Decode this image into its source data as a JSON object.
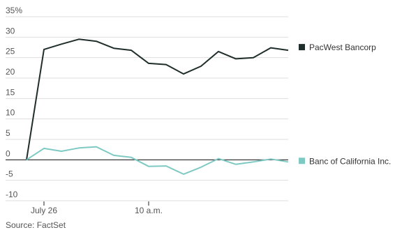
{
  "chart_data": {
    "type": "line",
    "ylabel": "",
    "xlabel": "",
    "ylim": [
      -10,
      35
    ],
    "y_ticks": [
      -10,
      -5,
      0,
      5,
      10,
      15,
      20,
      25,
      30,
      35
    ],
    "y_tick_labels": [
      "-10",
      "-5",
      "0",
      "5",
      "10",
      "15",
      "20",
      "25",
      "30",
      "35%"
    ],
    "x_tick_labels": [
      "July 26",
      "10 a.m."
    ],
    "grid": true,
    "legend_position": "right",
    "series": [
      {
        "name": "PacWest Bancorp",
        "color": "#1f2d2b",
        "values": [
          0,
          27.0,
          28.3,
          29.5,
          29.0,
          27.3,
          26.8,
          23.6,
          23.3,
          21.0,
          22.9,
          26.5,
          24.7,
          25.0,
          27.4,
          26.8
        ]
      },
      {
        "name": "Banc of California Inc.",
        "color": "#7ecac3",
        "values": [
          0,
          2.8,
          2.1,
          2.9,
          3.2,
          1.1,
          0.6,
          -1.6,
          -1.5,
          -3.5,
          -1.8,
          0.3,
          -1.1,
          -0.5,
          0.2,
          -0.5
        ]
      }
    ],
    "source": "Source: FactSet"
  }
}
